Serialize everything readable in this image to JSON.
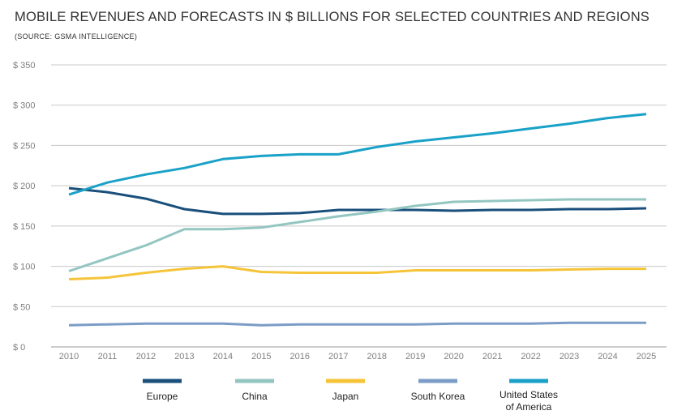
{
  "chart_data": {
    "type": "line",
    "title": "MOBILE REVENUES AND FORECASTS IN $ BILLIONS FOR SELECTED COUNTRIES AND REGIONS",
    "subtitle": "(SOURCE: GSMA INTELLIGENCE)",
    "xlabel": "",
    "ylabel": "",
    "x": [
      "2010",
      "2011",
      "2012",
      "2013",
      "2014",
      "2015",
      "2016",
      "2017",
      "2018",
      "2019",
      "2020",
      "2021",
      "2022",
      "2023",
      "2024",
      "2025"
    ],
    "ylim": [
      0,
      350
    ],
    "yticks": [
      0,
      50,
      100,
      150,
      200,
      250,
      300,
      350
    ],
    "ytick_labels": [
      "$ 0",
      "$ 50",
      "$ 100",
      "$ 150",
      "$ 200",
      "$ 250",
      "$ 300",
      "$ 350"
    ],
    "grid": true,
    "legend_position": "bottom",
    "series": [
      {
        "name": "Europe",
        "color": "#1a4f7c",
        "values": [
          197,
          192,
          184,
          171,
          165,
          165,
          166,
          170,
          170,
          170,
          169,
          170,
          170,
          171,
          171,
          172
        ]
      },
      {
        "name": "China",
        "color": "#93c6c1",
        "values": [
          94,
          110,
          126,
          146,
          146,
          148,
          155,
          162,
          168,
          175,
          180,
          181,
          182,
          183,
          183,
          183
        ]
      },
      {
        "name": "Japan",
        "color": "#f6c439",
        "values": [
          84,
          86,
          92,
          97,
          100,
          93,
          92,
          92,
          92,
          95,
          95,
          95,
          95,
          96,
          97,
          97
        ]
      },
      {
        "name": "South Korea",
        "color": "#7b9cc7",
        "values": [
          27,
          28,
          29,
          29,
          29,
          27,
          28,
          28,
          28,
          28,
          29,
          29,
          29,
          30,
          30,
          30
        ]
      },
      {
        "name": "United States of America",
        "label_lines": [
          "United States",
          "of America"
        ],
        "color": "#1aa1c8",
        "values": [
          189,
          204,
          214,
          222,
          233,
          237,
          239,
          239,
          248,
          255,
          260,
          265,
          271,
          277,
          284,
          289
        ]
      }
    ]
  }
}
